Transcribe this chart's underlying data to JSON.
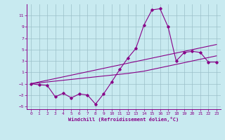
{
  "title": "",
  "xlabel": "Windchill (Refroidissement éolien,°C)",
  "ylabel": "",
  "bg_color": "#c8eaf0",
  "line_color": "#880088",
  "grid_color": "#9bbfc8",
  "x_data": [
    0,
    1,
    2,
    3,
    4,
    5,
    6,
    7,
    8,
    9,
    10,
    11,
    12,
    13,
    14,
    15,
    16,
    17,
    18,
    19,
    20,
    21,
    22,
    23
  ],
  "y_main": [
    -1.0,
    -1.2,
    -1.3,
    -3.3,
    -2.7,
    -3.5,
    -2.8,
    -3.0,
    -4.6,
    -2.8,
    -0.7,
    1.5,
    3.5,
    5.2,
    9.3,
    12.0,
    12.2,
    9.0,
    3.0,
    4.5,
    4.7,
    4.5,
    2.8,
    2.8
  ],
  "y_line1": [
    -1.0,
    -0.7,
    -0.4,
    -0.1,
    0.2,
    0.5,
    0.8,
    1.1,
    1.4,
    1.7,
    2.0,
    2.3,
    2.6,
    2.9,
    3.2,
    3.5,
    3.8,
    4.1,
    4.4,
    4.7,
    5.0,
    5.3,
    5.6,
    5.9
  ],
  "y_line2": [
    -1.0,
    -0.85,
    -0.7,
    -0.55,
    -0.4,
    -0.25,
    -0.1,
    0.05,
    0.2,
    0.35,
    0.5,
    0.65,
    0.8,
    1.0,
    1.2,
    1.5,
    1.8,
    2.1,
    2.4,
    2.7,
    3.0,
    3.3,
    3.6,
    3.9
  ],
  "xlim": [
    -0.5,
    23.5
  ],
  "ylim": [
    -5.5,
    13.0
  ],
  "yticks": [
    -5,
    -3,
    -1,
    1,
    3,
    5,
    7,
    9,
    11
  ],
  "xticks": [
    0,
    1,
    2,
    3,
    4,
    5,
    6,
    7,
    8,
    9,
    10,
    11,
    12,
    13,
    14,
    15,
    16,
    17,
    18,
    19,
    20,
    21,
    22,
    23
  ]
}
